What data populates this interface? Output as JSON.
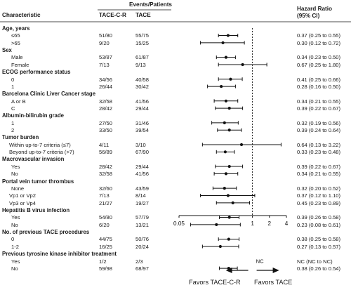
{
  "header": {
    "characteristic": "Characteristic",
    "events_patients": "Events/Patients",
    "group_a": "TACE-C-R",
    "group_b": "TACE",
    "hazard_ratio": "Hazard Ratio",
    "ci": "(95% CI)"
  },
  "footer": {
    "favors_left": "Favors TACE-C-R",
    "favors_right": "Favors TACE",
    "nc_label": "NC"
  },
  "chart_data": {
    "type": "forest",
    "x_scale": "log",
    "xlim": [
      0.05,
      4
    ],
    "ticks": [
      "0.05",
      "1",
      "2",
      "4"
    ],
    "tick_values": [
      0.05,
      1,
      2,
      4
    ],
    "reference": 1,
    "sections": [
      {
        "title": "Age, years",
        "rows": [
          {
            "label": "≤65",
            "a": "51/80",
            "b": "55/75",
            "hr": 0.37,
            "lo": 0.25,
            "hi": 0.55,
            "text": "0.37 (0.25 to 0.55)"
          },
          {
            "label": ">65",
            "a": "9/20",
            "b": "15/25",
            "hr": 0.3,
            "lo": 0.12,
            "hi": 0.72,
            "text": "0.30 (0.12 to 0.72)"
          }
        ]
      },
      {
        "title": "Sex",
        "rows": [
          {
            "label": "Male",
            "a": "53/87",
            "b": "61/87",
            "hr": 0.34,
            "lo": 0.23,
            "hi": 0.5,
            "text": "0.34 (0.23 to 0.50)"
          },
          {
            "label": "Female",
            "a": "7/13",
            "b": "9/13",
            "hr": 0.67,
            "lo": 0.25,
            "hi": 1.8,
            "text": "0.67 (0.25 to 1.80)"
          }
        ]
      },
      {
        "title": "ECOG performance status",
        "rows": [
          {
            "label": "0",
            "a": "34/56",
            "b": "40/58",
            "hr": 0.41,
            "lo": 0.25,
            "hi": 0.66,
            "text": "0.41 (0.25 to 0.66)"
          },
          {
            "label": "1",
            "a": "26/44",
            "b": "30/42",
            "hr": 0.28,
            "lo": 0.16,
            "hi": 0.5,
            "text": "0.28 (0.16 to 0.50)"
          }
        ]
      },
      {
        "title": "Barcelona Clinic Liver Cancer stage",
        "rows": [
          {
            "label": "A or B",
            "a": "32/58",
            "b": "41/56",
            "hr": 0.34,
            "lo": 0.21,
            "hi": 0.55,
            "text": "0.34 (0.21 to 0.55)"
          },
          {
            "label": "C",
            "a": "28/42",
            "b": "29/44",
            "hr": 0.39,
            "lo": 0.22,
            "hi": 0.67,
            "text": "0.39 (0.22 to 0.67)"
          }
        ]
      },
      {
        "title": "Albumin-bilirubin grade",
        "rows": [
          {
            "label": "1",
            "a": "27/50",
            "b": "31/46",
            "hr": 0.32,
            "lo": 0.19,
            "hi": 0.56,
            "text": "0.32 (0.19 to 0.56)"
          },
          {
            "label": "2",
            "a": "33/50",
            "b": "39/54",
            "hr": 0.39,
            "lo": 0.24,
            "hi": 0.64,
            "text": "0.39 (0.24 to 0.64)"
          }
        ]
      },
      {
        "title": "Tumor burden",
        "rows": [
          {
            "label": "Within up-to-7 criteria (≤7)",
            "a": "4/11",
            "b": "3/10",
            "hr": 0.64,
            "lo": 0.13,
            "hi": 3.22,
            "text": "0.64 (0.13 to 3.22)"
          },
          {
            "label": "Beyond up-to-7 criteria (>7)",
            "a": "56/89",
            "b": "67/90",
            "hr": 0.33,
            "lo": 0.23,
            "hi": 0.48,
            "text": "0.33 (0.23 to 0.48)"
          }
        ]
      },
      {
        "title": "Macrovascular invasion",
        "rows": [
          {
            "label": "Yes",
            "a": "28/42",
            "b": "29/44",
            "hr": 0.39,
            "lo": 0.22,
            "hi": 0.67,
            "text": "0.39 (0.22 to 0.67)"
          },
          {
            "label": "No",
            "a": "32/58",
            "b": "41/56",
            "hr": 0.34,
            "lo": 0.21,
            "hi": 0.55,
            "text": "0.34 (0.21 to 0.55)"
          }
        ]
      },
      {
        "title": "Portal vein tumor thrombus",
        "rows": [
          {
            "label": "None",
            "a": "32/60",
            "b": "43/59",
            "hr": 0.32,
            "lo": 0.2,
            "hi": 0.52,
            "text": "0.32 (0.20 to 0.52)"
          },
          {
            "label": "Vp1 or Vp2",
            "a": "7/13",
            "b": "8/14",
            "hr": 0.37,
            "lo": 0.12,
            "hi": 1.1,
            "text": "0.37 (0.12 to 1.10)"
          },
          {
            "label": "Vp3 or Vp4",
            "a": "21/27",
            "b": "19/27",
            "hr": 0.45,
            "lo": 0.23,
            "hi": 0.89,
            "text": "0.45 (0.23 to 0.89)"
          }
        ]
      },
      {
        "title": "Hepatitis B virus infection",
        "rows": [
          {
            "label": "Yes",
            "a": "54/80",
            "b": "57/79",
            "hr": 0.39,
            "lo": 0.26,
            "hi": 0.58,
            "text": "0.39 (0.26 to 0.58)"
          },
          {
            "label": "No",
            "a": "6/20",
            "b": "13/21",
            "hr": 0.23,
            "lo": 0.08,
            "hi": 0.61,
            "text": "0.23 (0.08 to 0.61)"
          }
        ]
      },
      {
        "title": "No. of previous TACE procedures",
        "rows": [
          {
            "label": "0",
            "a": "44/75",
            "b": "50/76",
            "hr": 0.38,
            "lo": 0.25,
            "hi": 0.58,
            "text": "0.38 (0.25 to 0.58)"
          },
          {
            "label": "1-2",
            "a": "16/25",
            "b": "20/24",
            "hr": 0.27,
            "lo": 0.13,
            "hi": 0.57,
            "text": "0.27 (0.13 to 0.57)"
          }
        ]
      },
      {
        "title": "Previous tyrosine kinase inhibitor treatment",
        "rows": [
          {
            "label": "Yes",
            "a": "1/2",
            "b": "2/3",
            "hr": null,
            "lo": null,
            "hi": null,
            "text": "NC (NC to NC)"
          },
          {
            "label": "No",
            "a": "59/98",
            "b": "68/97",
            "hr": 0.38,
            "lo": 0.26,
            "hi": 0.54,
            "text": "0.38 (0.26 to 0.54)"
          }
        ]
      }
    ]
  }
}
